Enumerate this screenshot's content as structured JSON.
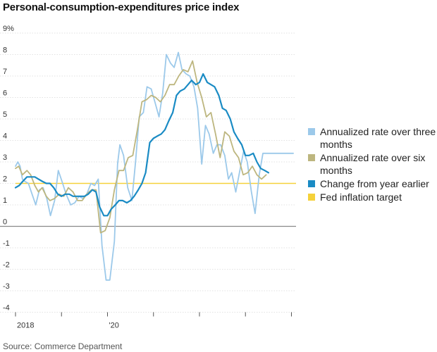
{
  "title": "Personal-consumption-expenditures price index",
  "source": "Source: Commerce Department",
  "legend": [
    {
      "label": "Annualized rate over three months",
      "color": "#9cc9ea"
    },
    {
      "label": "Annualized rate over six months",
      "color": "#bdb67f"
    },
    {
      "label": "Change from year earlier",
      "color": "#1a8bc4"
    },
    {
      "label": "Fed inflation target",
      "color": "#f5d13a"
    }
  ],
  "chart_data": {
    "type": "line",
    "title": "Personal-consumption-expenditures price index",
    "xlabel": "",
    "ylabel": "%",
    "ylim": [
      -4,
      9
    ],
    "y_ticks": [
      9,
      8,
      7,
      6,
      5,
      4,
      3,
      2,
      1,
      0,
      -1,
      -2,
      -3,
      -4
    ],
    "y_tick_labels": [
      "9%",
      "8",
      "7",
      "6",
      "5",
      "4",
      "3",
      "2",
      "1",
      "0",
      "-1",
      "-2",
      "-3",
      "-4"
    ],
    "x_tick_labels": [
      {
        "year": 2018.0,
        "label": "2018"
      },
      {
        "year": 2019.0,
        "label": ""
      },
      {
        "year": 2020.0,
        "label": "'20"
      },
      {
        "year": 2021.0,
        "label": ""
      },
      {
        "year": 2022.0,
        "label": ""
      },
      {
        "year": 2023.0,
        "label": ""
      },
      {
        "year": 2024.0,
        "label": ""
      }
    ],
    "xlim": [
      2018.0,
      2024.1
    ],
    "target": {
      "name": "Fed inflation target",
      "value": 2,
      "color": "#f5d13a"
    },
    "series": [
      {
        "name": "Annualized rate over three months",
        "color": "#9cc9ea",
        "x": [
          2018.0,
          2018.05,
          2018.1,
          2018.15,
          2018.2,
          2018.28,
          2018.36,
          2018.44,
          2018.52,
          2018.6,
          2018.68,
          2018.76,
          2018.85,
          2018.93,
          2019.01,
          2019.1,
          2019.2,
          2019.29,
          2019.38,
          2019.46,
          2019.55,
          2019.64,
          2019.72,
          2019.8,
          2019.88,
          2019.97,
          2020.05,
          2020.15,
          2020.22,
          2020.27,
          2020.35,
          2020.44,
          2020.53,
          2020.61,
          2020.69,
          2020.78,
          2020.86,
          2020.95,
          2021.03,
          2021.12,
          2021.2,
          2021.28,
          2021.37,
          2021.45,
          2021.54,
          2021.62,
          2021.71,
          2021.79,
          2021.88,
          2021.96,
          2022.05,
          2022.13,
          2022.21,
          2022.3,
          2022.38,
          2022.46,
          2022.55,
          2022.63,
          2022.7,
          2022.79,
          2022.87,
          2022.96,
          2023.04,
          2023.13,
          2023.21,
          2023.3,
          2023.38,
          2023.47,
          2023.55,
          2023.63,
          2023.72,
          2023.8,
          2023.88,
          2023.96,
          2024.04
        ],
        "values": [
          2.8,
          3.0,
          2.8,
          2.2,
          2.1,
          2.0,
          1.5,
          1.0,
          1.7,
          1.8,
          1.3,
          0.5,
          1.2,
          2.6,
          2.1,
          1.5,
          1.0,
          1.1,
          1.4,
          1.3,
          1.5,
          2.0,
          1.9,
          2.2,
          -0.9,
          -2.5,
          -2.5,
          -0.7,
          2.9,
          3.8,
          3.3,
          1.8,
          1.2,
          3.0,
          5.1,
          5.3,
          6.5,
          6.4,
          5.8,
          5.1,
          6.2,
          8.0,
          7.6,
          7.4,
          8.1,
          7.3,
          7.1,
          7.0,
          6.5,
          5.5,
          2.9,
          4.7,
          4.3,
          3.4,
          3.8,
          3.8,
          3.3,
          2.2,
          2.5,
          1.6,
          2.5,
          3.5,
          3.0,
          1.6,
          0.6,
          2.4,
          3.4,
          3.4,
          3.4,
          3.4,
          3.4,
          3.4,
          3.4,
          3.4,
          3.4
        ]
      },
      {
        "name": "Annualized rate over six months",
        "color": "#bdb67f",
        "x": [
          2018.0,
          2018.07,
          2018.15,
          2018.25,
          2018.33,
          2018.42,
          2018.5,
          2018.58,
          2018.67,
          2018.75,
          2018.85,
          2018.95,
          2019.05,
          2019.15,
          2019.25,
          2019.35,
          2019.45,
          2019.55,
          2019.65,
          2019.75,
          2019.85,
          2019.95,
          2020.05,
          2020.15,
          2020.25,
          2020.35,
          2020.45,
          2020.55,
          2020.65,
          2020.75,
          2020.85,
          2020.95,
          2021.05,
          2021.15,
          2021.25,
          2021.35,
          2021.45,
          2021.55,
          2021.65,
          2021.75,
          2021.85,
          2021.95,
          2022.05,
          2022.15,
          2022.25,
          2022.35,
          2022.45,
          2022.55,
          2022.65,
          2022.75,
          2022.85,
          2022.95,
          2023.05,
          2023.15,
          2023.25,
          2023.35,
          2023.45
        ],
        "values": [
          2.7,
          2.8,
          2.4,
          2.6,
          2.4,
          1.9,
          1.6,
          1.8,
          1.4,
          1.2,
          1.3,
          1.5,
          1.4,
          1.8,
          1.6,
          1.2,
          1.2,
          1.5,
          1.7,
          1.7,
          -0.3,
          -0.2,
          0.4,
          1.7,
          2.6,
          2.6,
          3.2,
          3.3,
          4.5,
          5.8,
          5.9,
          6.1,
          6.0,
          5.8,
          6.1,
          6.6,
          6.6,
          7.0,
          7.3,
          7.2,
          7.7,
          6.7,
          6.0,
          5.1,
          5.3,
          4.3,
          3.2,
          4.4,
          4.2,
          3.5,
          3.2,
          2.4,
          2.5,
          2.8,
          2.4,
          2.2,
          2.4
        ]
      },
      {
        "name": "Change from year earlier",
        "color": "#1a8bc4",
        "x": [
          2018.0,
          2018.08,
          2018.16,
          2018.25,
          2018.33,
          2018.42,
          2018.5,
          2018.58,
          2018.67,
          2018.75,
          2018.83,
          2018.92,
          2019.0,
          2019.08,
          2019.17,
          2019.25,
          2019.33,
          2019.42,
          2019.5,
          2019.58,
          2019.67,
          2019.75,
          2019.83,
          2019.92,
          2020.0,
          2020.08,
          2020.17,
          2020.25,
          2020.33,
          2020.42,
          2020.5,
          2020.58,
          2020.67,
          2020.75,
          2020.83,
          2020.92,
          2021.0,
          2021.08,
          2021.17,
          2021.25,
          2021.33,
          2021.42,
          2021.5,
          2021.58,
          2021.67,
          2021.75,
          2021.83,
          2021.92,
          2022.0,
          2022.08,
          2022.17,
          2022.25,
          2022.33,
          2022.42,
          2022.5,
          2022.58,
          2022.67,
          2022.75,
          2022.83,
          2022.92,
          2023.0,
          2023.08,
          2023.17,
          2023.25,
          2023.33,
          2023.42,
          2023.5
        ],
        "values": [
          1.8,
          1.9,
          2.1,
          2.3,
          2.3,
          2.3,
          2.2,
          2.1,
          2.0,
          2.0,
          1.8,
          1.5,
          1.4,
          1.5,
          1.5,
          1.4,
          1.4,
          1.4,
          1.4,
          1.5,
          1.7,
          1.6,
          0.9,
          0.5,
          0.5,
          0.8,
          1.0,
          1.2,
          1.2,
          1.1,
          1.2,
          1.4,
          1.7,
          2.0,
          2.5,
          3.9,
          4.1,
          4.2,
          4.3,
          4.5,
          4.9,
          5.3,
          6.1,
          6.3,
          6.4,
          6.6,
          6.8,
          6.6,
          6.7,
          7.1,
          6.7,
          6.6,
          6.5,
          6.1,
          5.5,
          5.4,
          5.0,
          4.4,
          4.1,
          3.8,
          3.3,
          3.3,
          3.4,
          3.0,
          2.7,
          2.6,
          2.5
        ]
      }
    ]
  }
}
